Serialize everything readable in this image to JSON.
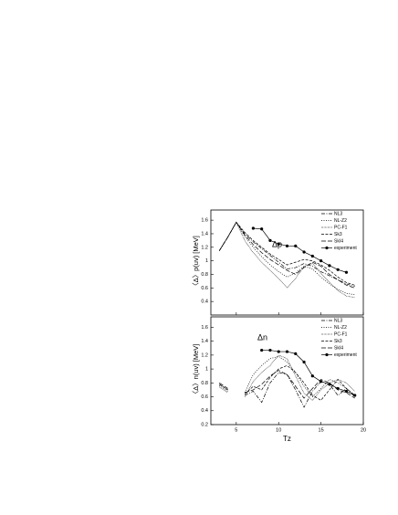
{
  "chart_data": [
    {
      "type": "line",
      "ylabel": "〈Δ〉p(uv)  [MeV]",
      "annotation": "Δp",
      "x": [
        3,
        4,
        5,
        6,
        7,
        8,
        9,
        10,
        11,
        12,
        13,
        14,
        15,
        16,
        17,
        18,
        19
      ],
      "xlim": [
        2,
        20
      ],
      "xticks": [
        5,
        10,
        15,
        20
      ],
      "ylim": [
        0.2,
        1.75
      ],
      "yticks": [
        0.4,
        0.6,
        0.8,
        1.0,
        1.2,
        1.4,
        1.6
      ],
      "legend": "upper right",
      "series": [
        {
          "name": "NL3",
          "color": "#000",
          "linestyle": "dashdot",
          "values": [
            1.15,
            1.35,
            1.57,
            1.4,
            1.28,
            1.18,
            1.08,
            0.98,
            0.88,
            0.9,
            0.96,
            0.92,
            0.84,
            0.78,
            0.72,
            0.66,
            0.62
          ]
        },
        {
          "name": "NL-Z2",
          "color": "#000",
          "linestyle": "dotted",
          "values": [
            1.15,
            1.35,
            1.57,
            1.36,
            1.2,
            1.06,
            0.94,
            0.84,
            0.76,
            0.82,
            0.92,
            0.88,
            0.76,
            0.66,
            0.58,
            0.52,
            0.5
          ]
        },
        {
          "name": "PC-F1",
          "color": "#000",
          "linestyle": "densedot",
          "values": [
            1.15,
            1.35,
            1.57,
            1.3,
            1.12,
            0.98,
            0.86,
            0.74,
            0.6,
            0.74,
            0.92,
            0.96,
            0.82,
            0.68,
            0.56,
            0.48,
            0.46
          ]
        },
        {
          "name": "Sk3",
          "color": "#000",
          "linestyle": "dashed",
          "values": [
            1.15,
            1.35,
            1.57,
            1.42,
            1.3,
            1.2,
            1.1,
            1.02,
            0.94,
            0.98,
            1.02,
            1.0,
            0.94,
            0.86,
            0.76,
            0.68,
            0.64
          ]
        },
        {
          "name": "SkI4",
          "color": "#000",
          "linestyle": "longdash",
          "values": [
            1.15,
            1.35,
            1.57,
            1.38,
            1.24,
            1.12,
            1.02,
            0.94,
            0.86,
            0.8,
            0.9,
            0.98,
            0.92,
            0.8,
            0.72,
            0.64,
            0.6
          ]
        },
        {
          "name": "experiment",
          "color": "#000",
          "linestyle": "solid",
          "marker": "circle",
          "values": [
            null,
            null,
            null,
            null,
            1.48,
            1.47,
            1.3,
            1.25,
            1.22,
            1.22,
            1.13,
            1.07,
            1.0,
            0.93,
            0.87,
            0.83,
            null
          ]
        }
      ]
    },
    {
      "type": "line",
      "ylabel": "〈Δ〉n(uv)  [MeV]",
      "xlabel": "Tz",
      "annotation": "Δn",
      "x": [
        3,
        4,
        5,
        6,
        7,
        8,
        9,
        10,
        11,
        12,
        13,
        14,
        15,
        16,
        17,
        18,
        19
      ],
      "xlim": [
        2,
        20
      ],
      "xticks": [
        5,
        10,
        15,
        20
      ],
      "ylim": [
        0.2,
        1.75
      ],
      "yticks": [
        0.2,
        0.4,
        0.6,
        0.8,
        1.0,
        1.2,
        1.4,
        1.6
      ],
      "legend": "upper right",
      "series": [
        {
          "name": "NL3",
          "color": "#000",
          "linestyle": "dashdot",
          "values": [
            0.78,
            0.7,
            null,
            0.62,
            0.68,
            0.52,
            0.8,
            0.95,
            0.92,
            0.7,
            0.45,
            0.68,
            0.82,
            0.78,
            0.62,
            0.72,
            0.6
          ]
        },
        {
          "name": "NL-Z2",
          "color": "#000",
          "linestyle": "dotted",
          "values": [
            0.76,
            0.68,
            null,
            0.66,
            0.92,
            1.05,
            1.15,
            1.18,
            1.1,
            0.95,
            0.75,
            0.6,
            0.72,
            0.85,
            0.8,
            0.72,
            0.62
          ]
        },
        {
          "name": "PC-F1",
          "color": "#000",
          "linestyle": "densedot",
          "values": [
            0.74,
            0.66,
            null,
            0.6,
            0.82,
            0.95,
            1.05,
            1.2,
            1.15,
            0.9,
            0.65,
            0.55,
            0.7,
            0.8,
            0.85,
            0.8,
            0.68
          ]
        },
        {
          "name": "Sk3",
          "color": "#000",
          "linestyle": "dashed",
          "values": [
            0.78,
            0.7,
            null,
            0.64,
            0.75,
            0.7,
            0.88,
            1.0,
            1.05,
            0.95,
            0.8,
            0.62,
            0.55,
            0.7,
            0.85,
            0.72,
            0.62
          ]
        },
        {
          "name": "SkI4",
          "color": "#000",
          "linestyle": "longdash",
          "values": [
            0.8,
            0.72,
            null,
            0.66,
            0.7,
            0.78,
            0.9,
            0.98,
            0.92,
            0.75,
            0.58,
            0.72,
            0.85,
            0.8,
            0.7,
            0.66,
            0.58
          ]
        },
        {
          "name": "experiment",
          "color": "#000",
          "linestyle": "solid",
          "marker": "circle",
          "values": [
            null,
            null,
            null,
            null,
            null,
            1.27,
            1.27,
            1.25,
            1.25,
            1.22,
            1.1,
            0.9,
            0.82,
            0.78,
            0.72,
            0.68,
            0.62
          ]
        }
      ]
    }
  ]
}
